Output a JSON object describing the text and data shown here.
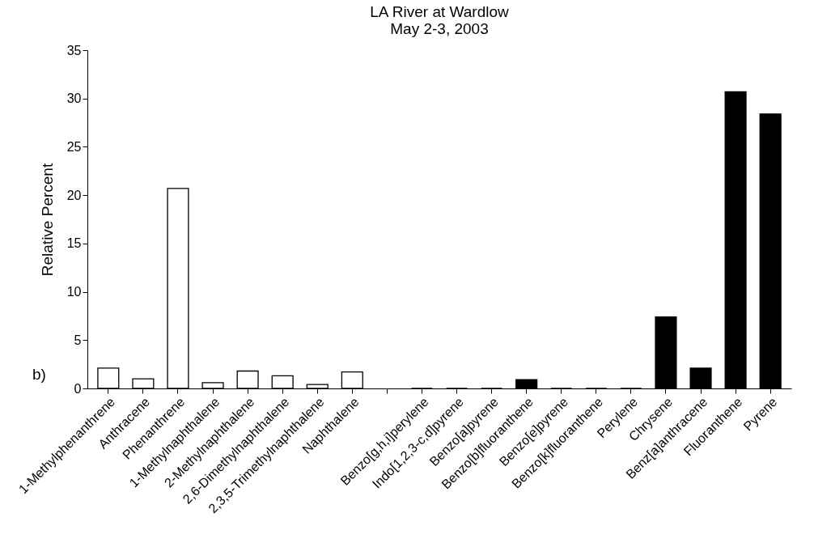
{
  "chart_data": {
    "type": "bar",
    "title": "LA River at Wardlow",
    "subtitle": "May 2-3, 2003",
    "ylabel": "Relative Percent",
    "annotations": [
      "b)"
    ],
    "categories": [
      "1-Methylphenanthrene",
      "Anthracene",
      "Phenanthrene",
      "1-Methylnaphthalene",
      "2-Methylnaphthalene",
      "2,6-Dimethylnaphthalene",
      "2,3,5-Trimethylnaphthalene",
      "Naphthalene",
      null,
      "Benzo[g,h,i]perylene",
      "Indo[1,2,3-c,d]pyrene",
      "Benzo[a]pyrene",
      "Benzo[b]fluoranthene",
      "Benzo[e]pyrene",
      "Benzo[k]fluoranthene",
      "Perylene",
      "Chrysene",
      "Benz[a]anthracene",
      "Fluoranthene",
      "Pyrene"
    ],
    "values": [
      2.1,
      1.0,
      20.7,
      0.6,
      1.8,
      1.3,
      0.4,
      1.7,
      null,
      0,
      0,
      0,
      0.9,
      0,
      0,
      0,
      7.4,
      2.1,
      30.7,
      28.4
    ],
    "colors": [
      "#ffffff",
      "#ffffff",
      "#ffffff",
      "#ffffff",
      "#ffffff",
      "#ffffff",
      "#ffffff",
      "#ffffff",
      "#ffffff",
      "#000000",
      "#000000",
      "#000000",
      "#000000",
      "#000000",
      "#000000",
      "#000000",
      "#000000",
      "#000000",
      "#000000",
      "#000000"
    ],
    "ylim": [
      0,
      35
    ],
    "yticks": [
      0,
      5,
      10,
      15,
      20,
      25,
      30,
      35
    ],
    "grid": false,
    "legend": false
  }
}
